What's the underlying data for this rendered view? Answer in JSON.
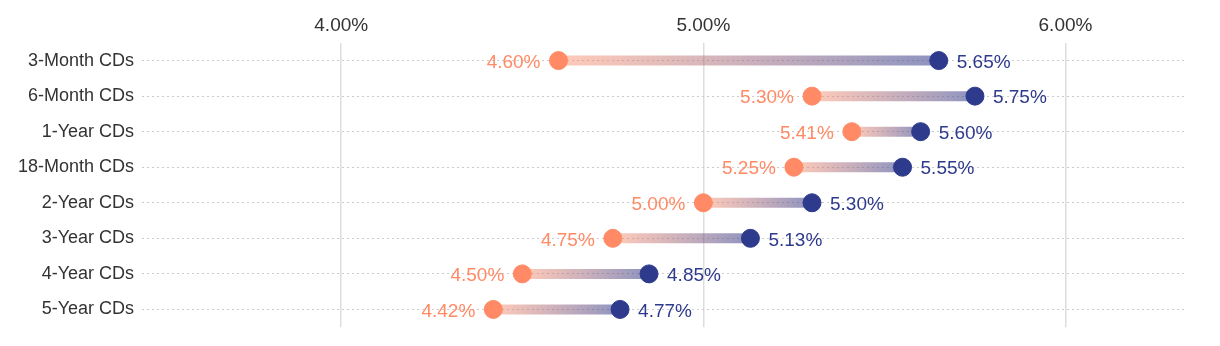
{
  "chart_data": {
    "type": "scatter",
    "orientation": "horizontal",
    "categories": [
      "3-Month CDs",
      "6-Month CDs",
      "1-Year CDs",
      "18-Month CDs",
      "2-Year CDs",
      "3-Year CDs",
      "4-Year CDs",
      "5-Year CDs"
    ],
    "series": [
      {
        "color": "#ff8a65",
        "values": [
          4.6,
          5.3,
          5.41,
          5.25,
          5.0,
          4.75,
          4.5,
          4.42
        ],
        "value_labels": [
          "4.60%",
          "5.30%",
          "5.41%",
          "5.25%",
          "5.00%",
          "4.75%",
          "4.50%",
          "4.42%"
        ]
      },
      {
        "color": "#2e3a8c",
        "values": [
          5.65,
          5.75,
          5.6,
          5.55,
          5.3,
          5.13,
          4.85,
          4.77
        ],
        "value_labels": [
          "5.65%",
          "5.75%",
          "5.60%",
          "5.55%",
          "5.30%",
          "5.13%",
          "4.85%",
          "4.77%"
        ]
      }
    ],
    "xlim": [
      3.45,
      6.33
    ],
    "xticks": [
      {
        "value": 4,
        "label": "4.00%"
      },
      {
        "value": 5,
        "label": "5.00%"
      },
      {
        "value": 6,
        "label": "6.00%"
      }
    ],
    "grid": true,
    "legend": false,
    "marker": "circle"
  }
}
